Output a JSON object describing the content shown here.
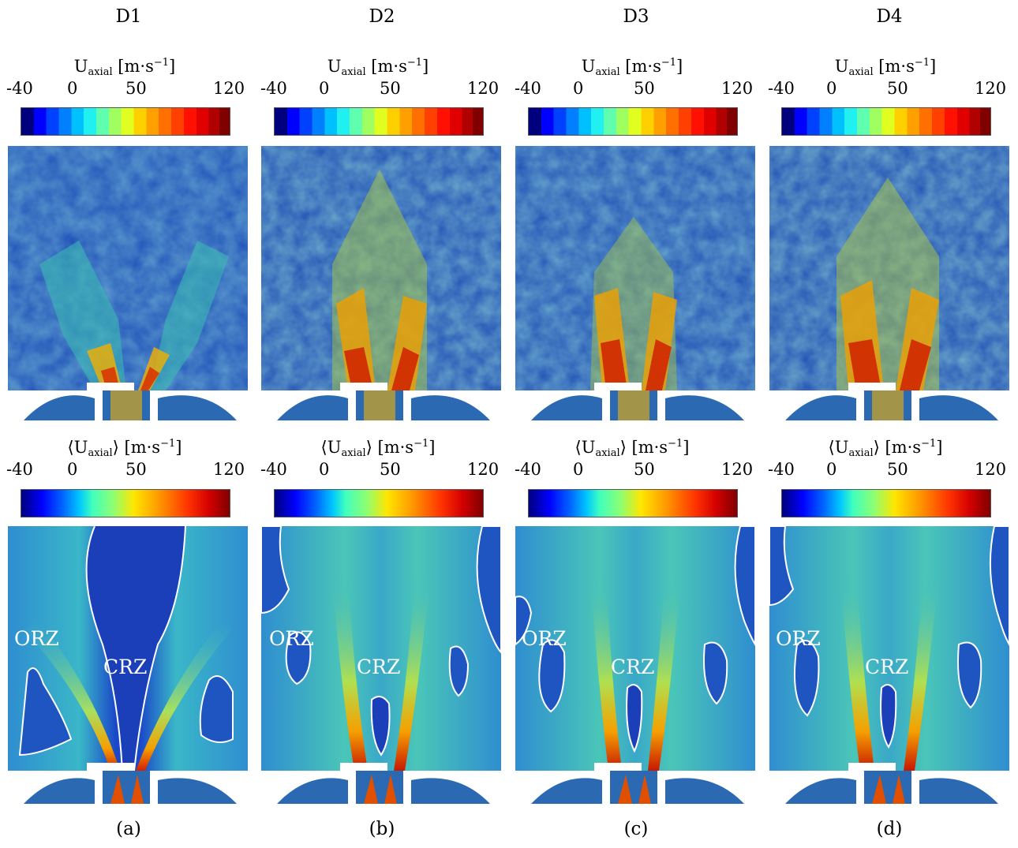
{
  "figure": {
    "columns": [
      {
        "header": "D1",
        "caption": "(a)",
        "zones": {
          "orz": "ORZ",
          "crz": "CRZ"
        }
      },
      {
        "header": "D2",
        "caption": "(b)",
        "zones": {
          "orz": "ORZ",
          "crz": "CRZ"
        }
      },
      {
        "header": "D3",
        "caption": "(c)",
        "zones": {
          "orz": "ORZ",
          "crz": "CRZ"
        }
      },
      {
        "header": "D4",
        "caption": "(d)",
        "zones": {
          "orz": "ORZ",
          "crz": "CRZ"
        }
      }
    ],
    "instantaneous_colorbar": {
      "title_prefix": "U",
      "title_sub": "axial",
      "title_unit": "[m·s",
      "title_exp": "−1",
      "title_close": "]",
      "ticks": [
        "-40",
        "0",
        "50",
        "120"
      ]
    },
    "mean_colorbar": {
      "title_open": "⟨U",
      "title_sub": "axial",
      "title_close_angle": "⟩",
      "title_unit": "[m·s",
      "title_exp": "−1",
      "title_close": "]",
      "ticks": [
        "-40",
        "0",
        "50",
        "120"
      ]
    },
    "colormap_colors": [
      "#00007f",
      "#0000ff",
      "#00c8ff",
      "#8cff73",
      "#ffe600",
      "#ff3300",
      "#800000"
    ]
  }
}
